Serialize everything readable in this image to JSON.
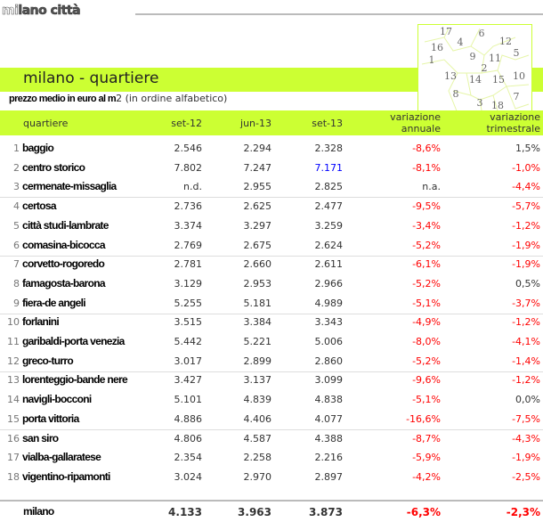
{
  "app_title_light": "mi",
  "app_title_dark": "lano città",
  "section_title": "milano - quartiere",
  "subtitle_bold": "prezzo medio in euro al m",
  "subtitle_rest": "2 (in ordine alfabetico)",
  "map_labels": [
    "17",
    "6",
    "4",
    "12",
    "16",
    "5",
    "9",
    "11",
    "1",
    "2",
    "13",
    "10",
    "14",
    "15",
    "8",
    "7",
    "3",
    "18"
  ],
  "colors": {
    "accent": "#ccff33",
    "negative": "#ff0000",
    "highlight": "#0000ff"
  },
  "columns": {
    "name": "quartiere",
    "c1": "set-12",
    "c2": "jun-13",
    "c3": "set-13",
    "c4a": "variazione",
    "c4b": "annuale",
    "c5a": "variazione",
    "c5b": "trimestrale"
  },
  "rows": [
    {
      "n": "1",
      "name": "baggio",
      "c1": "2.546",
      "c2": "2.294",
      "c3": "2.328",
      "c4": "-8,6%",
      "c5": "1,5%"
    },
    {
      "n": "2",
      "name": "centro storico",
      "c1": "7.802",
      "c2": "7.247",
      "c3": "7.171",
      "c4": "-8,1%",
      "c5": "-1,0%"
    },
    {
      "n": "3",
      "name": "cermenate-missaglia",
      "c1": "n.d.",
      "c2": "2.955",
      "c3": "2.825",
      "c4": "n.a.",
      "c5": "-4,4%"
    },
    {
      "n": "4",
      "name": "certosa",
      "c1": "2.736",
      "c2": "2.625",
      "c3": "2.477",
      "c4": "-9,5%",
      "c5": "-5,7%"
    },
    {
      "n": "5",
      "name": "città studi-lambrate",
      "c1": "3.374",
      "c2": "3.297",
      "c3": "3.259",
      "c4": "-3,4%",
      "c5": "-1,2%"
    },
    {
      "n": "6",
      "name": "comasina-bicocca",
      "c1": "2.769",
      "c2": "2.675",
      "c3": "2.624",
      "c4": "-5,2%",
      "c5": "-1,9%"
    },
    {
      "n": "7",
      "name": "corvetto-rogoredo",
      "c1": "2.781",
      "c2": "2.660",
      "c3": "2.611",
      "c4": "-6,1%",
      "c5": "-1,9%"
    },
    {
      "n": "8",
      "name": "famagosta-barona",
      "c1": "3.129",
      "c2": "2.953",
      "c3": "2.966",
      "c4": "-5,2%",
      "c5": "0,5%"
    },
    {
      "n": "9",
      "name": "fiera-de angeli",
      "c1": "5.255",
      "c2": "5.181",
      "c3": "4.989",
      "c4": "-5,1%",
      "c5": "-3,7%"
    },
    {
      "n": "10",
      "name": "forlanini",
      "c1": "3.515",
      "c2": "3.384",
      "c3": "3.343",
      "c4": "-4,9%",
      "c5": "-1,2%"
    },
    {
      "n": "11",
      "name": "garibaldi-porta venezia",
      "c1": "5.442",
      "c2": "5.221",
      "c3": "5.006",
      "c4": "-8,0%",
      "c5": "-4,1%"
    },
    {
      "n": "12",
      "name": "greco-turro",
      "c1": "3.017",
      "c2": "2.899",
      "c3": "2.860",
      "c4": "-5,2%",
      "c5": "-1,4%"
    },
    {
      "n": "13",
      "name": "lorenteggio-bande nere",
      "c1": "3.427",
      "c2": "3.137",
      "c3": "3.099",
      "c4": "-9,6%",
      "c5": "-1,2%"
    },
    {
      "n": "14",
      "name": "navigli-bocconi",
      "c1": "5.101",
      "c2": "4.839",
      "c3": "4.838",
      "c4": "-5,1%",
      "c5": "0,0%"
    },
    {
      "n": "15",
      "name": "porta vittoria",
      "c1": "4.886",
      "c2": "4.406",
      "c3": "4.077",
      "c4": "-16,6%",
      "c5": "-7,5%"
    },
    {
      "n": "16",
      "name": "san siro",
      "c1": "4.806",
      "c2": "4.587",
      "c3": "4.388",
      "c4": "-8,7%",
      "c5": "-4,3%"
    },
    {
      "n": "17",
      "name": "vialba-gallaratese",
      "c1": "2.354",
      "c2": "2.258",
      "c3": "2.216",
      "c4": "-5,9%",
      "c5": "-1,9%"
    },
    {
      "n": "18",
      "name": "vigentino-ripamonti",
      "c1": "3.024",
      "c2": "2.970",
      "c3": "2.897",
      "c4": "-4,2%",
      "c5": "-2,5%"
    }
  ],
  "total": {
    "name": "milano",
    "c1": "4.133",
    "c2": "3.963",
    "c3": "3.873",
    "c4": "-6,3%",
    "c5": "-2,3%"
  }
}
